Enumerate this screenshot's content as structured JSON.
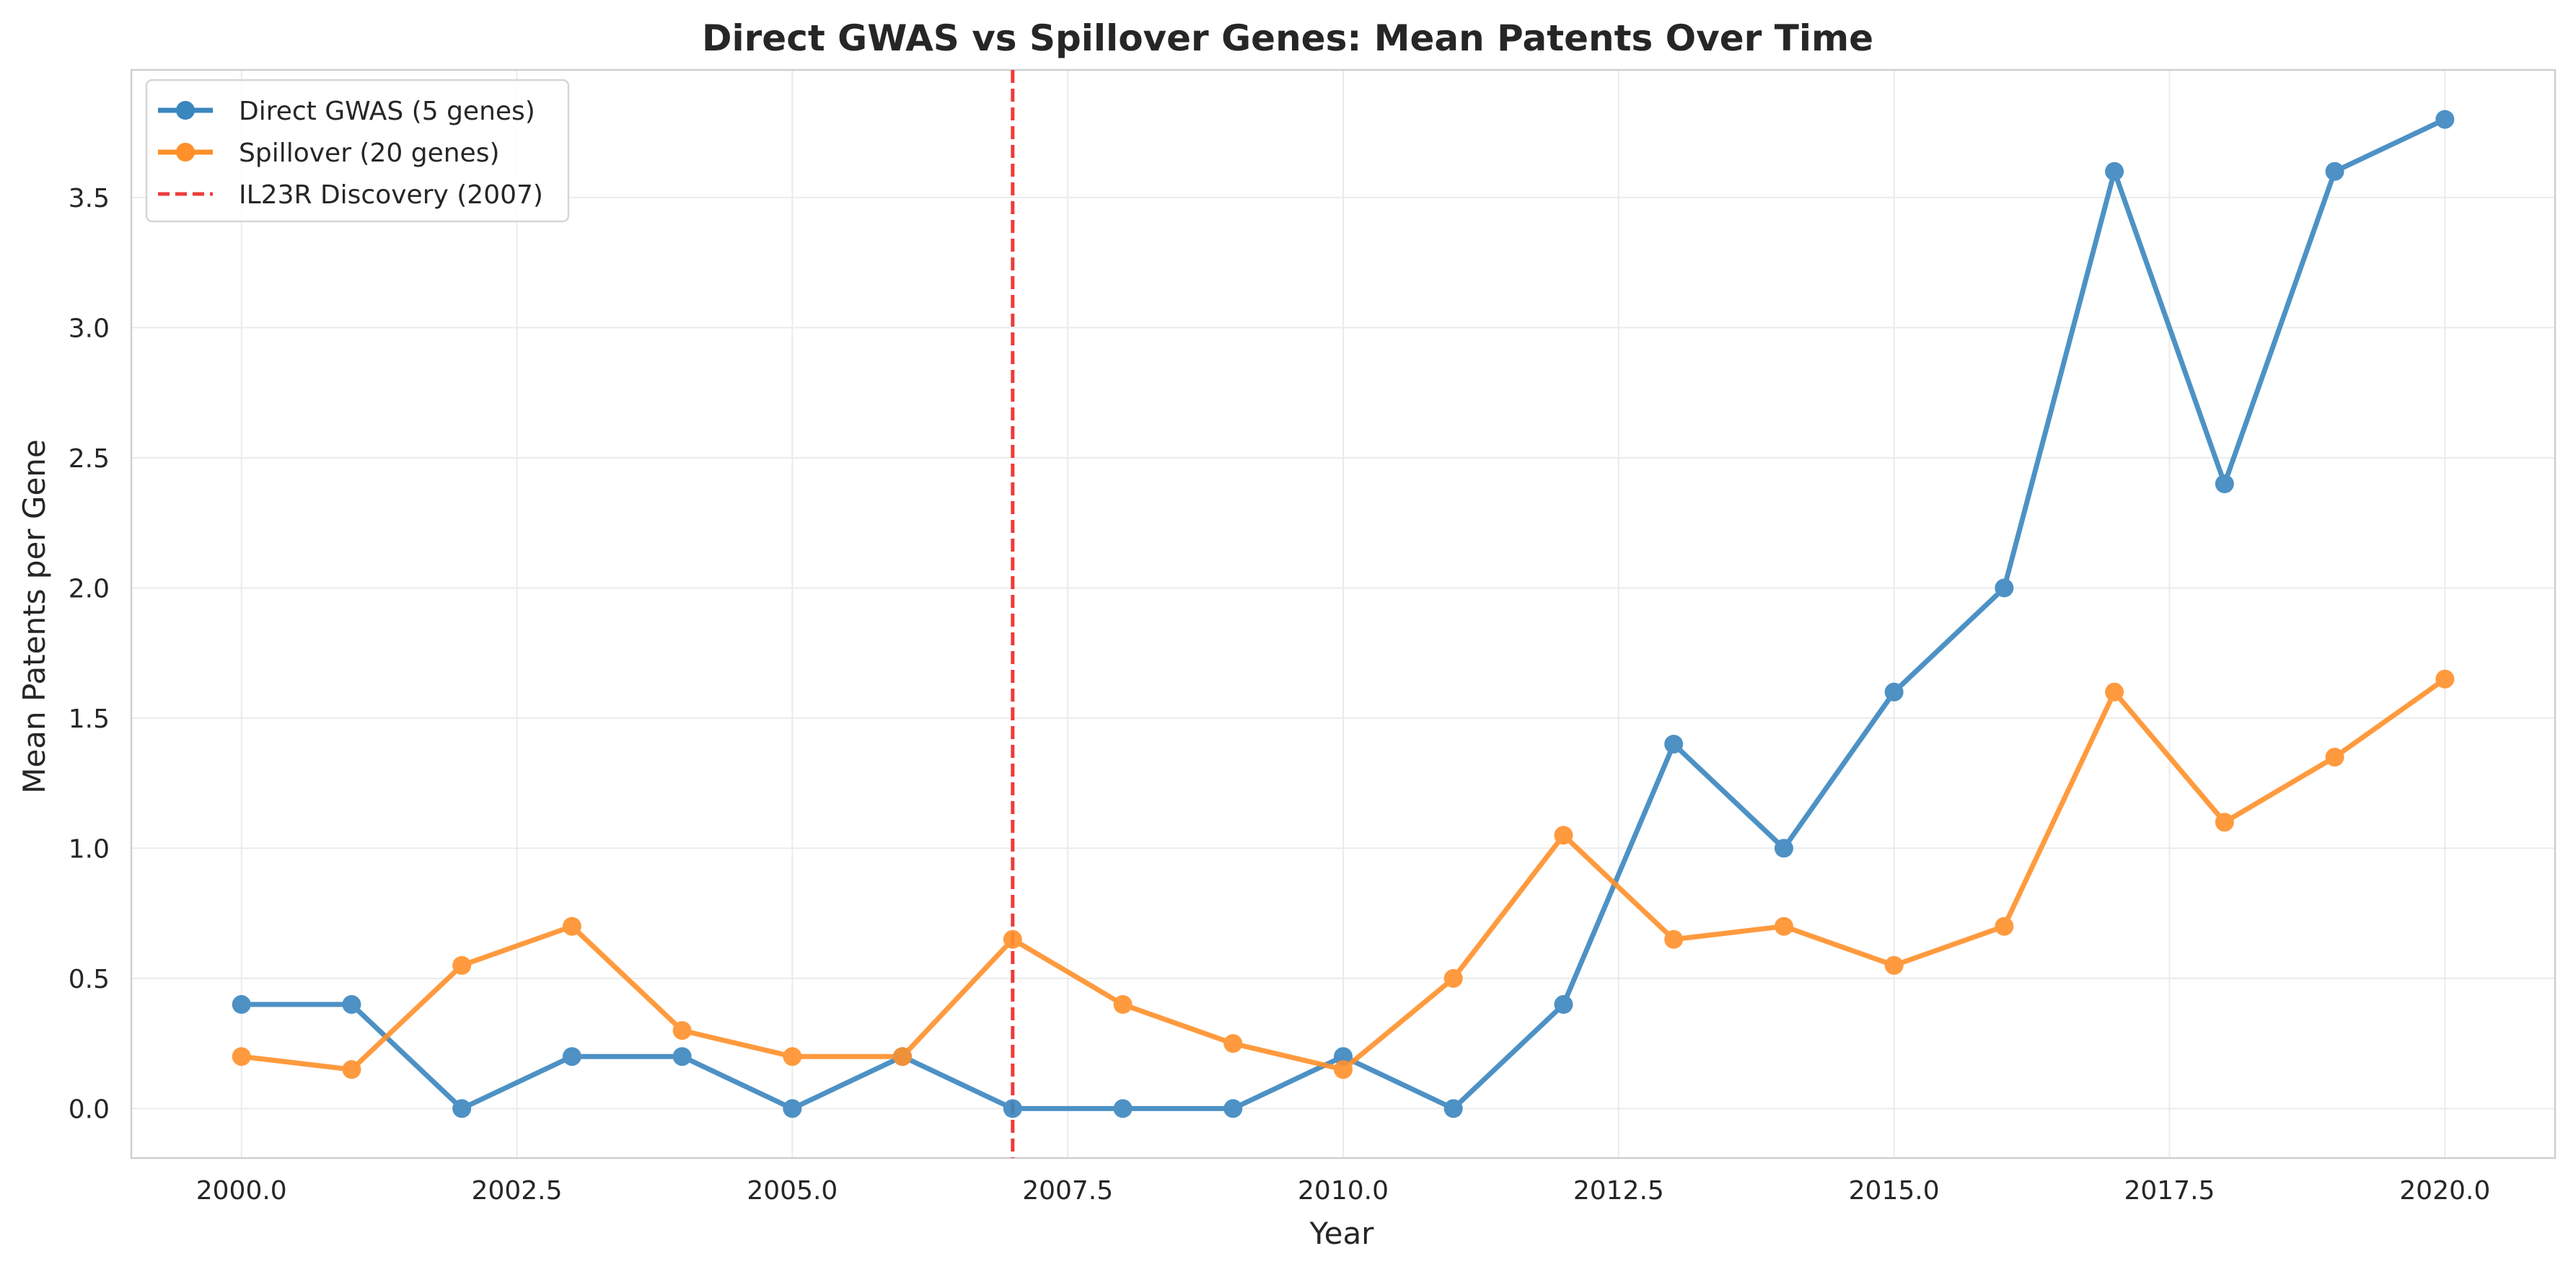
{
  "chart_data": {
    "type": "line",
    "title": "Direct GWAS vs Spillover Genes: Mean Patents Over Time",
    "xlabel": "Year",
    "ylabel": "Mean Patents per Gene",
    "xlim": [
      1999.0,
      2021.0
    ],
    "ylim": [
      -0.19,
      3.99
    ],
    "x_ticks": [
      2000.0,
      2002.5,
      2005.0,
      2007.5,
      2010.0,
      2012.5,
      2015.0,
      2017.5,
      2020.0
    ],
    "x_tick_labels": [
      "2000.0",
      "2002.5",
      "2005.0",
      "2007.5",
      "2010.0",
      "2012.5",
      "2015.0",
      "2017.5",
      "2020.0"
    ],
    "y_ticks": [
      0.0,
      0.5,
      1.0,
      1.5,
      2.0,
      2.5,
      3.0,
      3.5
    ],
    "y_tick_labels": [
      "0.0",
      "0.5",
      "1.0",
      "1.5",
      "2.0",
      "2.5",
      "3.0",
      "3.5"
    ],
    "grid": true,
    "legend_position": "top-left",
    "x": [
      2000,
      2001,
      2002,
      2003,
      2004,
      2005,
      2006,
      2007,
      2008,
      2009,
      2010,
      2011,
      2012,
      2013,
      2014,
      2015,
      2016,
      2017,
      2018,
      2019,
      2020
    ],
    "series": [
      {
        "name": "Direct GWAS (5 genes)",
        "color": "#3a86bf",
        "marker": "circle",
        "values": [
          0.4,
          0.4,
          0.0,
          0.2,
          0.2,
          0.0,
          0.2,
          0.0,
          0.0,
          0.0,
          0.2,
          0.0,
          0.4,
          1.4,
          1.0,
          1.6,
          2.0,
          3.6,
          2.4,
          3.6,
          3.8
        ]
      },
      {
        "name": "Spillover (20 genes)",
        "color": "#ff902a",
        "marker": "circle",
        "values": [
          0.2,
          0.15,
          0.55,
          0.7,
          0.3,
          0.2,
          0.2,
          0.65,
          0.4,
          0.25,
          0.15,
          0.5,
          1.05,
          0.65,
          0.7,
          0.55,
          0.7,
          1.6,
          1.1,
          1.35,
          1.65
        ]
      }
    ],
    "reference_lines": [
      {
        "orientation": "vertical",
        "x": 2007,
        "style": "dashed",
        "color": "#ee3b3b",
        "name": "IL23R Discovery (2007)"
      }
    ]
  }
}
